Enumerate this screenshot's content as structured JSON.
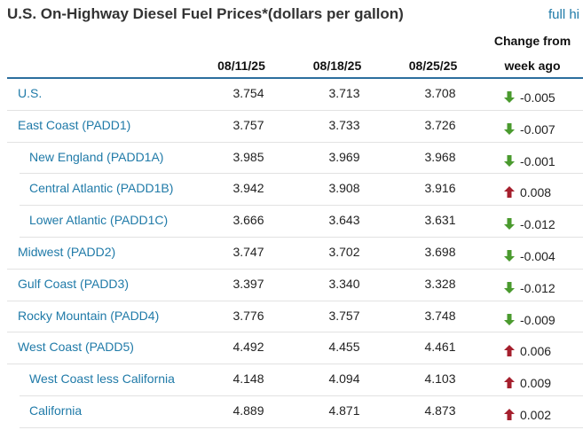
{
  "title": "U.S. On-Highway Diesel Fuel Prices*(dollars per gallon)",
  "full_link": "full hi",
  "columns": [
    "08/11/25",
    "08/18/25",
    "08/25/25"
  ],
  "change_header": [
    "Change from",
    "week ago"
  ],
  "colors": {
    "down": "#4a9a2e",
    "up": "#a51f2d",
    "link": "#1f7aa8",
    "rule": "#2c6e9e"
  },
  "rows": [
    {
      "label": "U.S.",
      "values": [
        "3.754",
        "3.713",
        "3.708"
      ],
      "change": "-0.005",
      "dir": "down",
      "sub": false
    },
    {
      "label": "East Coast (PADD1)",
      "values": [
        "3.757",
        "3.733",
        "3.726"
      ],
      "change": "-0.007",
      "dir": "down",
      "sub": false
    },
    {
      "label": "New England (PADD1A)",
      "values": [
        "3.985",
        "3.969",
        "3.968"
      ],
      "change": "-0.001",
      "dir": "down",
      "sub": true
    },
    {
      "label": "Central Atlantic (PADD1B)",
      "values": [
        "3.942",
        "3.908",
        "3.916"
      ],
      "change": "0.008",
      "dir": "up",
      "sub": true
    },
    {
      "label": "Lower Atlantic (PADD1C)",
      "values": [
        "3.666",
        "3.643",
        "3.631"
      ],
      "change": "-0.012",
      "dir": "down",
      "sub": true
    },
    {
      "label": "Midwest (PADD2)",
      "values": [
        "3.747",
        "3.702",
        "3.698"
      ],
      "change": "-0.004",
      "dir": "down",
      "sub": false
    },
    {
      "label": "Gulf Coast (PADD3)",
      "values": [
        "3.397",
        "3.340",
        "3.328"
      ],
      "change": "-0.012",
      "dir": "down",
      "sub": false
    },
    {
      "label": "Rocky Mountain (PADD4)",
      "values": [
        "3.776",
        "3.757",
        "3.748"
      ],
      "change": "-0.009",
      "dir": "down",
      "sub": false
    },
    {
      "label": "West Coast (PADD5)",
      "values": [
        "4.492",
        "4.455",
        "4.461"
      ],
      "change": "0.006",
      "dir": "up",
      "sub": false
    },
    {
      "label": "West Coast less California",
      "values": [
        "4.148",
        "4.094",
        "4.103"
      ],
      "change": "0.009",
      "dir": "up",
      "sub": true
    },
    {
      "label": "California",
      "values": [
        "4.889",
        "4.871",
        "4.873"
      ],
      "change": "0.002",
      "dir": "up",
      "sub": true
    }
  ]
}
